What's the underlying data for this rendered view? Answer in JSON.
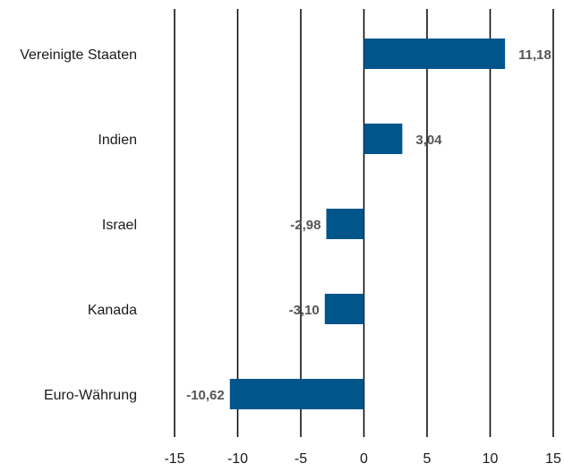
{
  "chart_data": {
    "type": "bar",
    "orientation": "horizontal",
    "categories": [
      "Vereinigte Staaten",
      "Indien",
      "Israel",
      "Kanada",
      "Euro-Währung"
    ],
    "values": [
      11.18,
      3.04,
      -2.98,
      -3.1,
      -10.62
    ],
    "value_labels": [
      "11,18",
      "3,04",
      "-2,98",
      "-3,10",
      "-10,62"
    ],
    "x_ticks": [
      -15,
      -10,
      -5,
      0,
      5,
      10,
      15
    ],
    "x_tick_labels": [
      "-15",
      "-10",
      "-5",
      "0",
      "5",
      "10",
      "15"
    ],
    "xlim": [
      -15,
      15
    ],
    "grid": true,
    "bar_color": "#00558b",
    "title": "",
    "xlabel": "",
    "ylabel": ""
  }
}
